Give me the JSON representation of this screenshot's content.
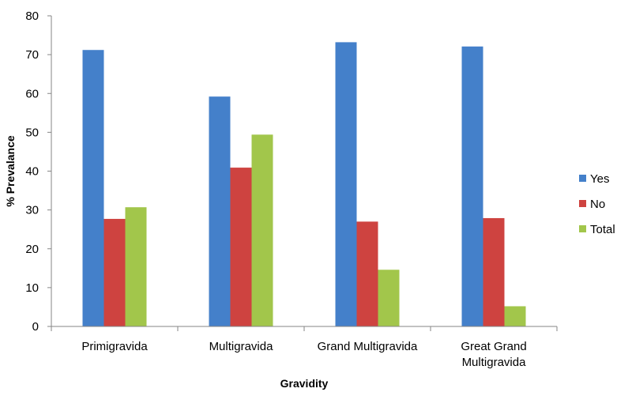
{
  "chart_data": {
    "type": "bar",
    "categories": [
      "Primigravida",
      "Multigravida",
      "Grand Multigravida",
      "Great Grand Multigravida"
    ],
    "category_lines": [
      [
        "Primigravida"
      ],
      [
        "Multigravida"
      ],
      [
        "Grand Multigravida"
      ],
      [
        "Great Grand",
        "Multigravida"
      ]
    ],
    "series": [
      {
        "name": "Yes",
        "color": "#4480CA",
        "values": [
          71.2,
          59.2,
          73.2,
          72.1
        ]
      },
      {
        "name": "No",
        "color": "#CE4340",
        "values": [
          27.7,
          40.9,
          27.0,
          27.9
        ]
      },
      {
        "name": "Total",
        "color": "#A2C64B",
        "values": [
          30.7,
          49.4,
          14.6,
          5.2
        ]
      }
    ],
    "ylim": [
      0,
      80
    ],
    "yticks": [
      0,
      10,
      20,
      30,
      40,
      50,
      60,
      70,
      80
    ],
    "xlabel": "Gravidity",
    "ylabel": "% Prevalance",
    "grid": false,
    "legend_position": "right"
  }
}
